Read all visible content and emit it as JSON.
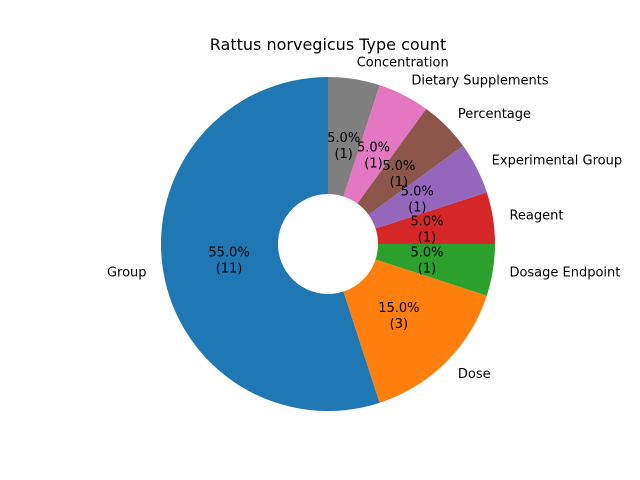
{
  "chart_data": {
    "type": "pie",
    "title": "Rattus norvegicus Type count",
    "donut": true,
    "slices": [
      {
        "label": "Group",
        "value": 11,
        "percent": "55.0%",
        "count": "(11)",
        "color": "#1f77b4"
      },
      {
        "label": "Dose",
        "value": 3,
        "percent": "15.0%",
        "count": "(3)",
        "color": "#ff7f0e"
      },
      {
        "label": "Dosage Endpoint",
        "value": 1,
        "percent": "5.0%",
        "count": "(1)",
        "color": "#2ca02c"
      },
      {
        "label": "Reagent",
        "value": 1,
        "percent": "5.0%",
        "count": "(1)",
        "color": "#d62728"
      },
      {
        "label": "Experimental Group",
        "value": 1,
        "percent": "5.0%",
        "count": "(1)",
        "color": "#9467bd"
      },
      {
        "label": "Percentage",
        "value": 1,
        "percent": "5.0%",
        "count": "(1)",
        "color": "#8c564b"
      },
      {
        "label": "Dietary Supplements",
        "value": 1,
        "percent": "5.0%",
        "count": "(1)",
        "color": "#e377c2"
      },
      {
        "label": "Concentration",
        "value": 1,
        "percent": "5.0%",
        "count": "(1)",
        "color": "#7f7f7f"
      }
    ]
  }
}
